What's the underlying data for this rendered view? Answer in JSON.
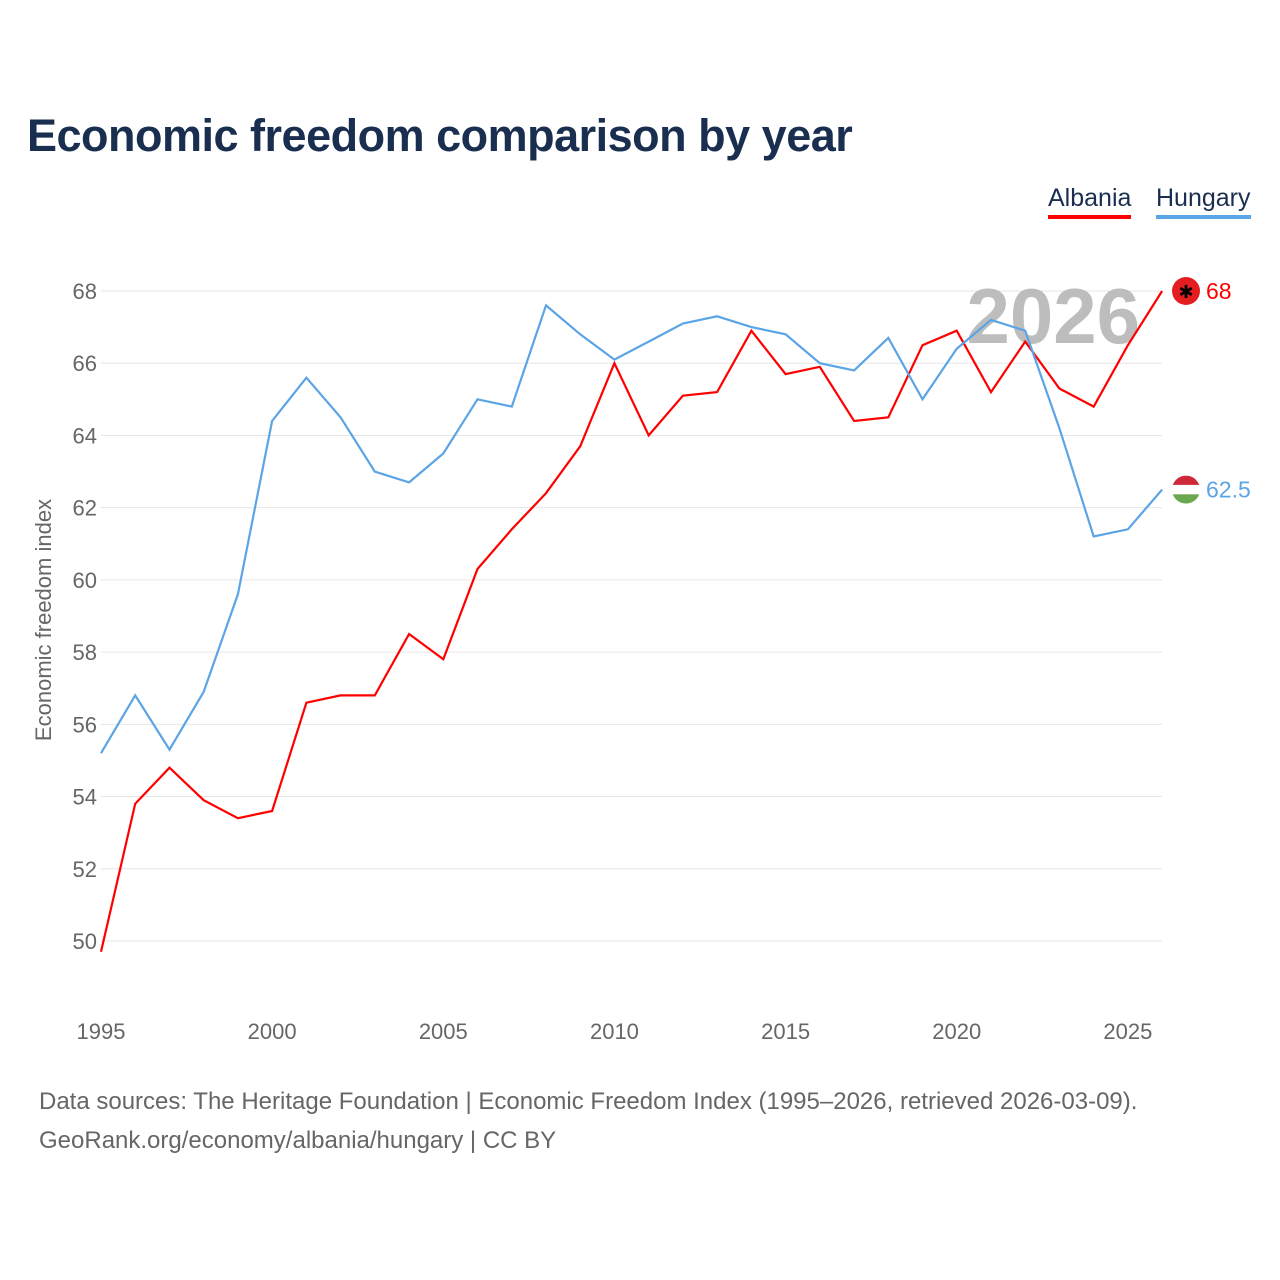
{
  "title": "Economic freedom comparison by year",
  "footer": {
    "line1": "Data sources: The Heritage Foundation | Economic Freedom Index (1995–2026, retrieved 2026-03-09).",
    "line2": "GeoRank.org/economy/albania/hungary | CC BY"
  },
  "chart_data": {
    "type": "line",
    "title": "Economic freedom comparison by year",
    "ylabel": "Economic freedom index",
    "xlabel": "",
    "ylim": [
      48,
      69
    ],
    "xlim": [
      1995,
      2026
    ],
    "yticks": [
      50,
      52,
      54,
      56,
      58,
      60,
      62,
      64,
      66,
      68
    ],
    "xticks": [
      1995,
      2000,
      2005,
      2010,
      2015,
      2020,
      2025
    ],
    "watermark_year": "2026",
    "legend_position": "top-right",
    "x": [
      1995,
      1996,
      1997,
      1998,
      1999,
      2000,
      2001,
      2002,
      2003,
      2004,
      2005,
      2006,
      2007,
      2008,
      2009,
      2010,
      2011,
      2012,
      2013,
      2014,
      2015,
      2016,
      2017,
      2018,
      2019,
      2020,
      2021,
      2022,
      2023,
      2024,
      2025,
      2026
    ],
    "series": [
      {
        "name": "Albania",
        "color": "#ff0000",
        "end_label": "68",
        "values": [
          49.7,
          53.8,
          54.8,
          53.9,
          53.4,
          53.6,
          56.6,
          56.8,
          56.8,
          58.5,
          57.8,
          60.3,
          61.4,
          62.4,
          63.7,
          66.0,
          64.0,
          65.1,
          65.2,
          66.9,
          65.7,
          65.9,
          64.4,
          64.5,
          66.5,
          66.9,
          65.2,
          66.6,
          65.3,
          64.8,
          66.5,
          68.0
        ]
      },
      {
        "name": "Hungary",
        "color": "#5ba4e6",
        "end_label": "62.5",
        "values": [
          55.2,
          56.8,
          55.3,
          56.9,
          59.6,
          64.4,
          65.6,
          64.5,
          63.0,
          62.7,
          63.5,
          65.0,
          64.8,
          67.6,
          66.8,
          66.1,
          66.6,
          67.1,
          67.3,
          67.0,
          66.8,
          66.0,
          65.8,
          66.7,
          65.0,
          66.4,
          67.2,
          66.9,
          64.2,
          61.2,
          61.4,
          62.5
        ]
      }
    ]
  }
}
